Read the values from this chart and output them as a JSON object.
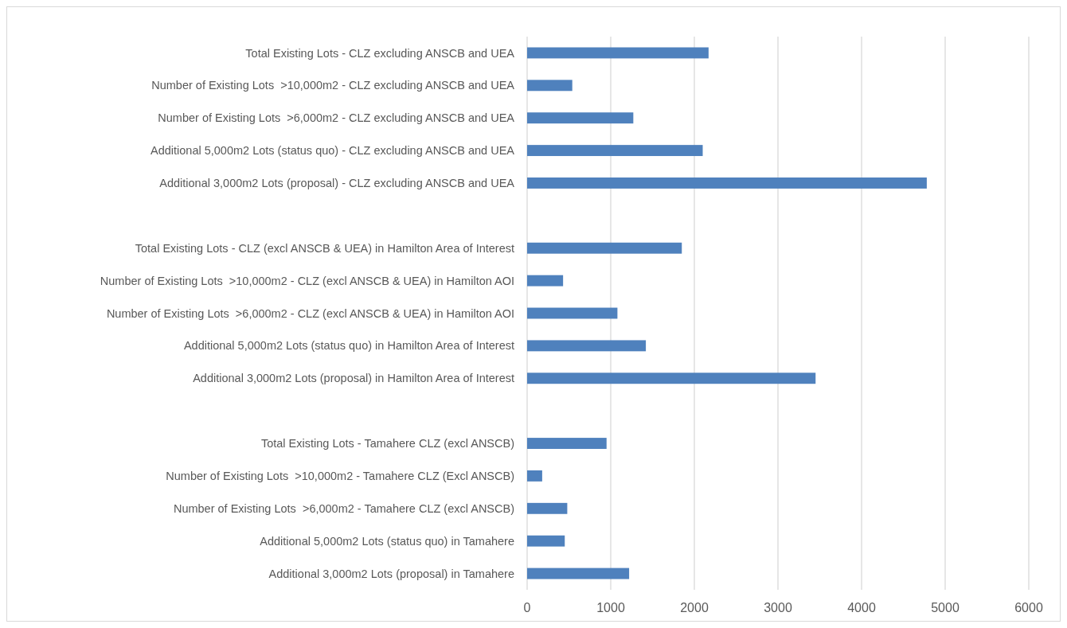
{
  "chart_data": {
    "type": "bar",
    "orientation": "horizontal",
    "categories": [
      "Total Existing Lots - CLZ excluding ANSCB and UEA",
      "Number of Existing Lots  >10,000m2 - CLZ excluding ANSCB and UEA",
      "Number of Existing Lots  >6,000m2 - CLZ excluding ANSCB and UEA",
      "Additional 5,000m2 Lots (status quo) - CLZ excluding ANSCB and UEA",
      "Additional 3,000m2 Lots (proposal) - CLZ excluding ANSCB and UEA",
      null,
      "Total Existing Lots - CLZ (excl ANSCB & UEA) in Hamilton Area of Interest",
      "Number of Existing Lots  >10,000m2 - CLZ (excl ANSCB & UEA) in Hamilton AOI",
      "Number of Existing Lots  >6,000m2 - CLZ (excl ANSCB & UEA) in Hamilton AOI",
      "Additional 5,000m2 Lots (status quo) in Hamilton Area of Interest",
      "Additional 3,000m2 Lots (proposal) in Hamilton Area of Interest",
      null,
      "Total Existing Lots - Tamahere CLZ (excl ANSCB)",
      "Number of Existing Lots  >10,000m2 - Tamahere CLZ (Excl ANSCB)",
      "Number of Existing Lots  >6,000m2 - Tamahere CLZ (excl ANSCB)",
      "Additional 5,000m2 Lots (status quo) in Tamahere",
      "Additional 3,000m2 Lots (proposal) in Tamahere"
    ],
    "values": [
      2170,
      540,
      1270,
      2100,
      4780,
      null,
      1850,
      430,
      1080,
      1420,
      3450,
      null,
      950,
      180,
      480,
      450,
      1220
    ],
    "color": "#4f81bd",
    "xlim": [
      0,
      6000
    ],
    "xticks": [
      0,
      1000,
      2000,
      3000,
      4000,
      5000,
      6000
    ],
    "grid": "x"
  }
}
